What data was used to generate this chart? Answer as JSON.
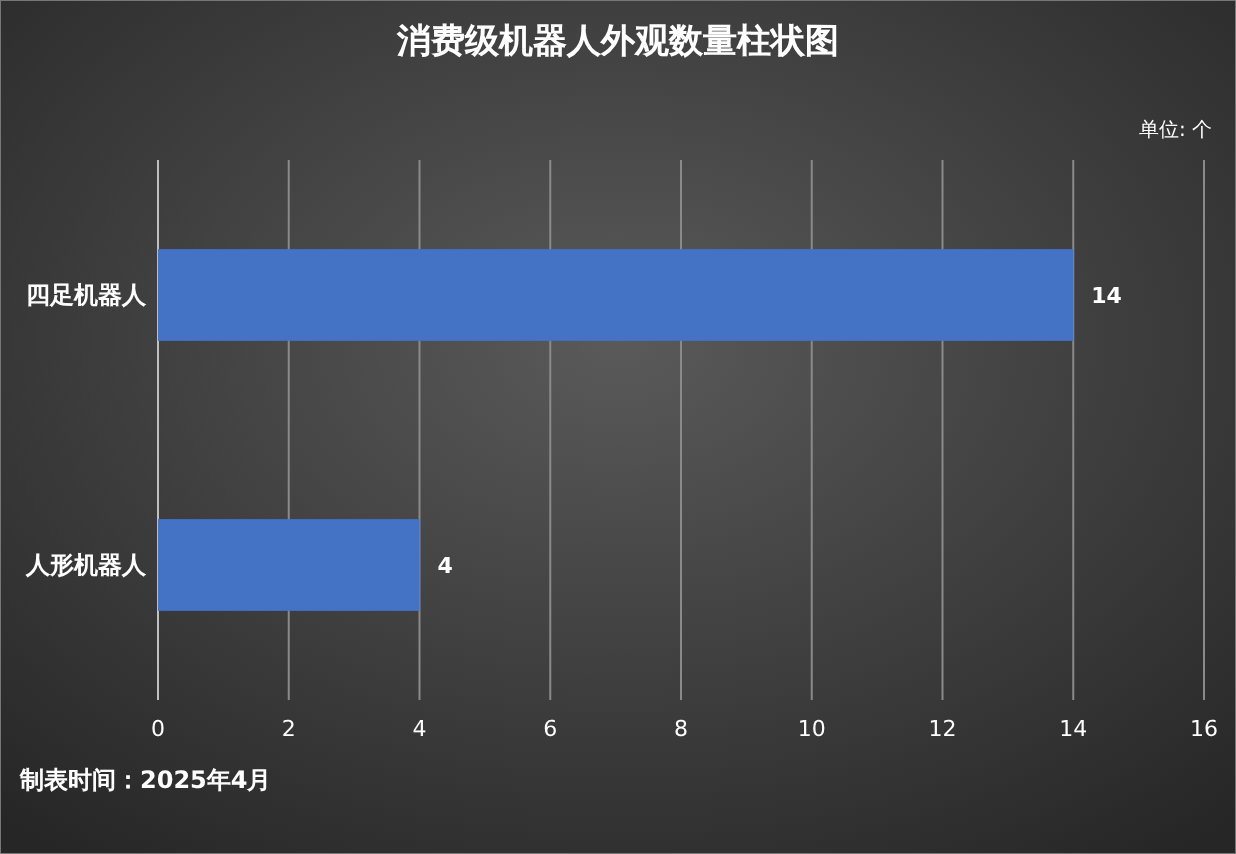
{
  "chart_data": {
    "type": "bar",
    "orientation": "horizontal",
    "title": "消费级机器人外观数量柱状图",
    "categories": [
      "四足机器人",
      "人形机器人"
    ],
    "values": [
      14,
      4
    ],
    "color": "#4472c4",
    "xlim": [
      0,
      16
    ],
    "xticks": [
      0,
      2,
      4,
      6,
      8,
      10,
      12,
      14,
      16
    ],
    "grid": "x",
    "data_labels": true,
    "annotations": [
      "单位: 个",
      "制表时间：2025年4月"
    ]
  }
}
